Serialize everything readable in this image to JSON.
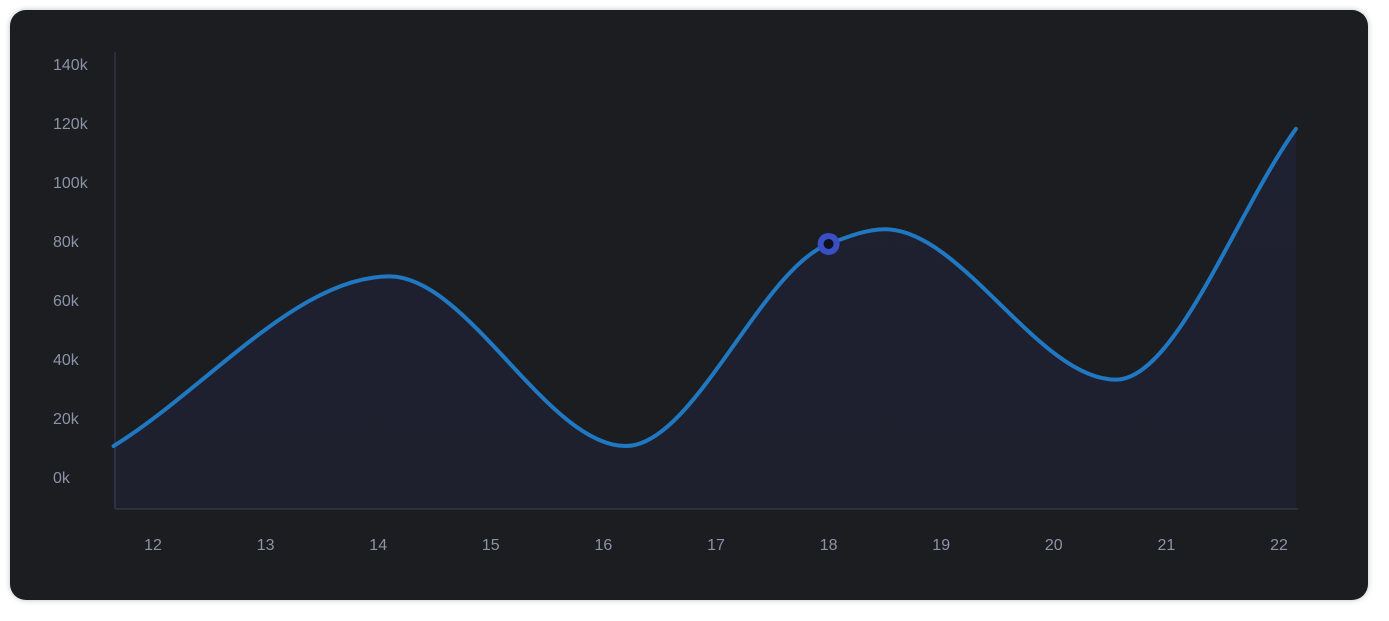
{
  "chart_data": {
    "type": "area",
    "title": "",
    "xlabel": "",
    "ylabel": "",
    "x": [
      12,
      13,
      14,
      15,
      16,
      17,
      18,
      19,
      20,
      21,
      22
    ],
    "x_tick_labels": [
      "12",
      "13",
      "14",
      "15",
      "16",
      "17",
      "18",
      "19",
      "20",
      "21",
      "22"
    ],
    "y_tick_labels": [
      "0k",
      "20k",
      "40k",
      "60k",
      "80k",
      "100k",
      "120k",
      "140k"
    ],
    "ylim": [
      0,
      140000
    ],
    "series": [
      {
        "points": [
          {
            "x": 11.65,
            "y": 10500
          },
          {
            "x": 14.1,
            "y": 68000
          },
          {
            "x": 16.2,
            "y": 10500
          },
          {
            "x": 18.0,
            "y": 79000
          },
          {
            "x": 18.5,
            "y": 84000
          },
          {
            "x": 20.55,
            "y": 33000
          },
          {
            "x": 22.15,
            "y": 118000
          }
        ]
      }
    ],
    "highlight": {
      "x": 18.0,
      "y": 79000
    },
    "grid": false,
    "colors": {
      "background": "#1c1d21",
      "line": "#1f78c1",
      "fill": "#1e2132",
      "marker_ring": "#3a4fc4",
      "marker_center": "#0e1020",
      "axis": "#3a3f52",
      "tick_text": "#8b93a7"
    }
  }
}
